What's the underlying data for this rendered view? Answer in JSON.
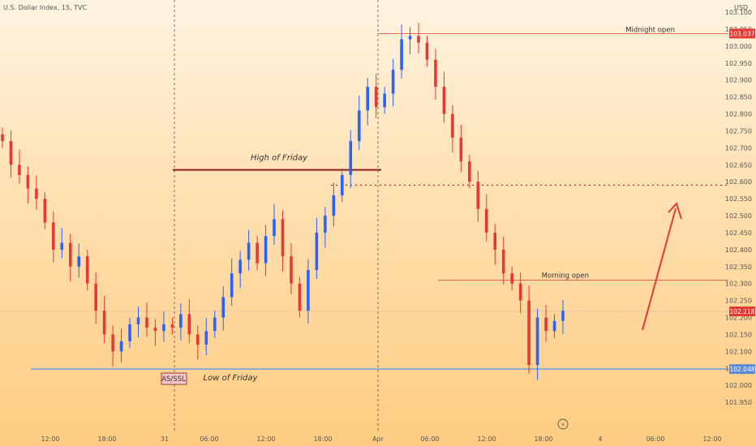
{
  "chart_data": {
    "type": "candlestick",
    "title": "U.S. Dollar Index, 15, TVC",
    "currency": "USD",
    "ylim": [
      101.9,
      103.1
    ],
    "x_ticks": [
      "12:00",
      "18:00",
      "31",
      "06:00",
      "12:00",
      "18:00",
      "Apr",
      "06:00",
      "12:00",
      "18:00",
      "4",
      "06:00",
      "12:00"
    ],
    "y_ticks": [
      "103.100",
      "103.050",
      "103.000",
      "102.950",
      "102.900",
      "102.850",
      "102.800",
      "102.750",
      "102.700",
      "102.650",
      "102.600",
      "102.550",
      "102.500",
      "102.450",
      "102.400",
      "102.350",
      "102.300",
      "102.250",
      "102.200",
      "102.150",
      "102.100",
      "102.050",
      "102.000",
      "101.950"
    ],
    "series": [
      {
        "values": [
          102.72,
          102.65,
          102.62,
          102.58,
          102.55,
          102.48,
          102.4,
          102.42,
          102.35,
          102.38,
          102.3,
          102.22,
          102.15,
          102.1,
          102.13,
          102.18,
          102.2,
          102.17,
          102.16,
          102.18,
          102.17,
          102.21,
          102.15,
          102.12,
          102.16,
          102.2,
          102.26,
          102.33,
          102.37,
          102.42,
          102.36,
          102.44,
          102.49,
          102.38,
          102.3,
          102.22,
          102.34,
          102.45,
          102.5,
          102.56,
          102.62,
          102.72,
          102.81,
          102.88,
          102.82,
          102.86,
          102.93,
          103.02,
          103.03,
          103.01,
          102.96,
          102.88,
          102.8,
          102.73,
          102.66,
          102.6,
          102.52,
          102.45,
          102.4,
          102.33,
          102.3,
          102.25,
          102.06,
          102.2,
          102.16,
          102.19,
          102.22
        ]
      }
    ],
    "levels": [
      {
        "label": "Midnight open",
        "value": 103.037
      },
      {
        "label": "Morning open",
        "value": 102.31
      },
      {
        "label": "High of Friday",
        "value": 102.635
      },
      {
        "label": "Low of Friday",
        "value": 102.048
      },
      {
        "label": "",
        "value": 102.59
      }
    ],
    "badges": [
      {
        "label": "103.037",
        "value": 103.037,
        "color": "#e53935"
      },
      {
        "label": "102.218",
        "value": 102.218,
        "color": "#e53935"
      },
      {
        "label": "102.048",
        "value": 102.048,
        "color": "#5b8bd6"
      }
    ],
    "annotations": {
      "high_of_friday": "High of Friday",
      "low_of_friday": "Low of Friday",
      "as_ssl": "AS/SSL",
      "midnight_open": "Midnight open",
      "morning_open": "Morning open"
    },
    "colors": {
      "up": "#2962ff",
      "down": "#e53935",
      "high_line": "#8b1a1a",
      "low_line": "#7aa2e3",
      "arrow": "#e53935"
    }
  }
}
